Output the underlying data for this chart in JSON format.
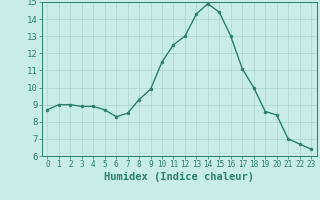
{
  "xlabel": "Humidex (Indice chaleur)",
  "x": [
    0,
    1,
    2,
    3,
    4,
    5,
    6,
    7,
    8,
    9,
    10,
    11,
    12,
    13,
    14,
    15,
    16,
    17,
    18,
    19,
    20,
    21,
    22,
    23
  ],
  "y": [
    8.7,
    9.0,
    9.0,
    8.9,
    8.9,
    8.7,
    8.3,
    8.5,
    9.3,
    9.9,
    11.5,
    12.5,
    13.0,
    14.3,
    14.9,
    14.4,
    13.0,
    11.1,
    10.0,
    8.6,
    8.4,
    7.0,
    6.7,
    6.4
  ],
  "line_color": "#2e7d6e",
  "marker": "o",
  "marker_size": 2.0,
  "background_color": "#c8ecea",
  "grid_color": "#aed4d1",
  "tick_color": "#2e7d6e",
  "label_color": "#2e7d6e",
  "ylim": [
    6,
    15
  ],
  "xlim": [
    -0.5,
    23.5
  ],
  "yticks": [
    6,
    7,
    8,
    9,
    10,
    11,
    12,
    13,
    14,
    15
  ],
  "xticks": [
    0,
    1,
    2,
    3,
    4,
    5,
    6,
    7,
    8,
    9,
    10,
    11,
    12,
    13,
    14,
    15,
    16,
    17,
    18,
    19,
    20,
    21,
    22,
    23
  ],
  "xlabel_fontsize": 7.5,
  "ytick_fontsize": 6.5,
  "xtick_fontsize": 5.5,
  "line_width": 1.0,
  "marker_color": "#2e7d6e",
  "spine_color": "#2e7d6e"
}
